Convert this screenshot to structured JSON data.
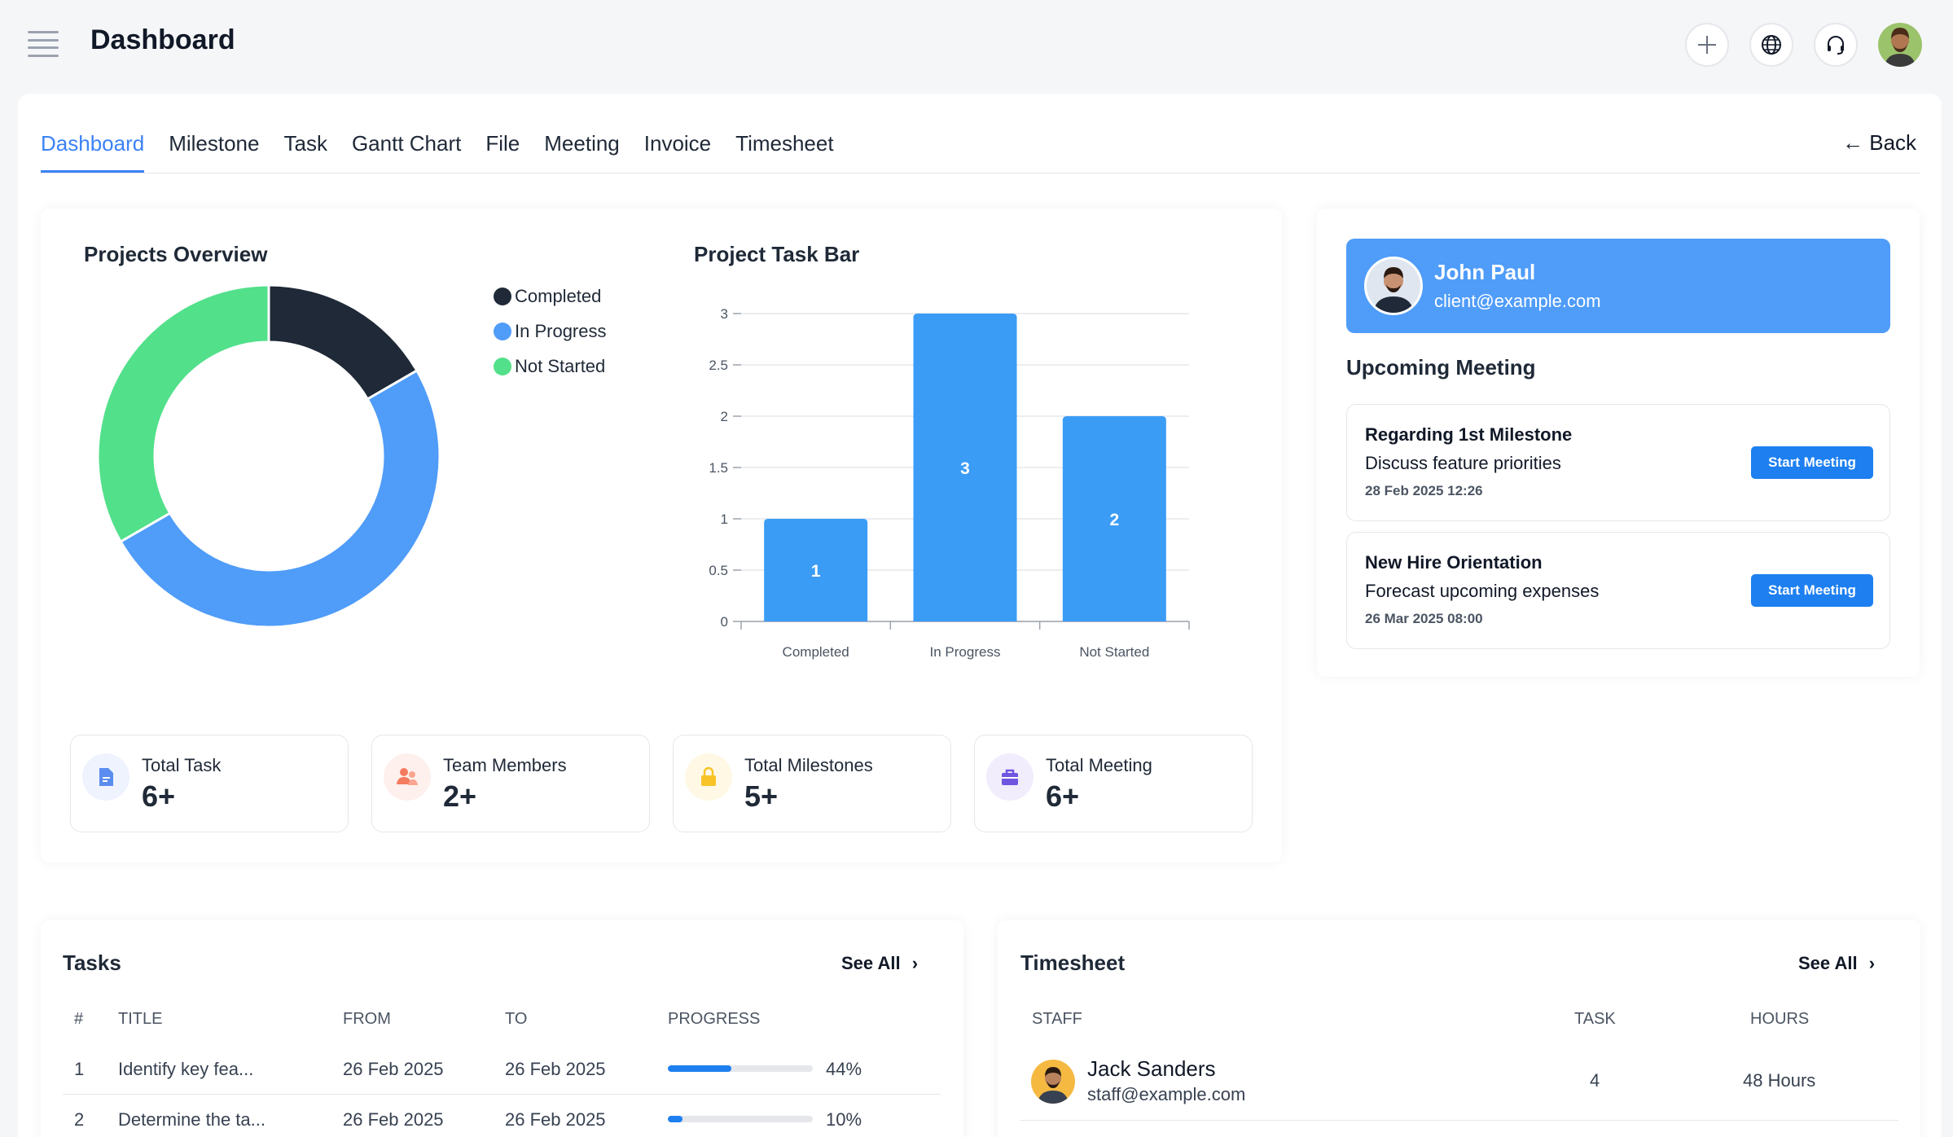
{
  "header": {
    "title": "Dashboard"
  },
  "tabs": [
    {
      "label": "Dashboard",
      "active": true
    },
    {
      "label": "Milestone"
    },
    {
      "label": "Task"
    },
    {
      "label": "Gantt Chart"
    },
    {
      "label": "File"
    },
    {
      "label": "Meeting"
    },
    {
      "label": "Invoice"
    },
    {
      "label": "Timesheet"
    }
  ],
  "back_label": "← Back",
  "overview": {
    "title": "Projects Overview"
  },
  "taskbar": {
    "title": "Project Task Bar"
  },
  "chart_data": [
    {
      "type": "pie",
      "title": "Projects Overview",
      "categories": [
        "Completed",
        "In Progress",
        "Not Started"
      ],
      "values": [
        1,
        3,
        2
      ],
      "colors": [
        "#1f2937",
        "#4f9cf9",
        "#52e08a"
      ],
      "legend": "right"
    },
    {
      "type": "bar",
      "title": "Project Task Bar",
      "categories": [
        "Completed",
        "In Progress",
        "Not Started"
      ],
      "values": [
        1,
        3,
        2
      ],
      "data_labels": [
        "1",
        "3",
        "2"
      ],
      "yticks": [
        "0",
        "0.5",
        "1",
        "1.5",
        "2",
        "2.5",
        "3"
      ],
      "ylim": [
        0,
        3
      ],
      "color": "#3b9cf6",
      "grid": true
    }
  ],
  "stats": [
    {
      "label": "Total Task",
      "value": "6+",
      "icon": "document-icon",
      "color": "#5b8def",
      "bg": "#eef3fe"
    },
    {
      "label": "Team Members",
      "value": "2+",
      "icon": "users-icon",
      "color": "#f47b5f",
      "bg": "#fef0ec"
    },
    {
      "label": "Total Milestones",
      "value": "5+",
      "icon": "lock-icon",
      "color": "#f8c327",
      "bg": "#fef8e5"
    },
    {
      "label": "Total Meeting",
      "value": "6+",
      "icon": "briefcase-icon",
      "color": "#6f55e0",
      "bg": "#f1edfc"
    }
  ],
  "profile": {
    "name": "John Paul",
    "email": "client@example.com"
  },
  "upcoming": {
    "title": "Upcoming Meeting"
  },
  "meetings": [
    {
      "title": "Regarding 1st Milestone",
      "subtitle": "Discuss feature priorities",
      "datetime": "28 Feb 2025 12:26",
      "button": "Start Meeting"
    },
    {
      "title": "New Hire Orientation",
      "subtitle": "Forecast upcoming expenses",
      "datetime": "26 Mar 2025 08:00",
      "button": "Start Meeting"
    }
  ],
  "tasks": {
    "title": "Tasks",
    "see_all": "See All",
    "columns": [
      "#",
      "TITLE",
      "FROM",
      "TO",
      "PROGRESS"
    ],
    "rows": [
      {
        "num": "1",
        "title": "Identify key fea...",
        "from": "26 Feb 2025",
        "to": "26 Feb 2025",
        "progress": 44,
        "progress_label": "44%"
      },
      {
        "num": "2",
        "title": "Determine the ta...",
        "from": "26 Feb 2025",
        "to": "26 Feb 2025",
        "progress": 10,
        "progress_label": "10%"
      }
    ]
  },
  "timesheet": {
    "title": "Timesheet",
    "see_all": "See All",
    "columns": [
      "STAFF",
      "TASK",
      "HOURS"
    ],
    "rows": [
      {
        "name": "Jack Sanders",
        "email": "staff@example.com",
        "task": "4",
        "hours": "48 Hours"
      }
    ]
  }
}
